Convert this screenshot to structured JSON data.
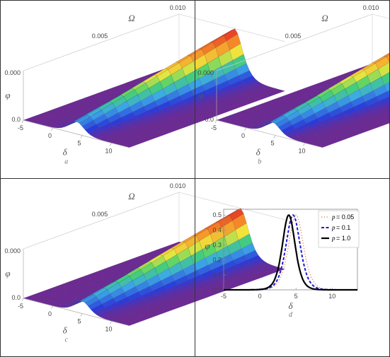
{
  "figure": {
    "border_color": "#333333"
  },
  "chart_data": [
    {
      "id": "a",
      "type": "surface",
      "panel_label": "a",
      "xlabel": "δ",
      "ylabel": "Ω",
      "zlabel": "φ",
      "x_ticks": [
        "-5",
        "0",
        "5",
        "10"
      ],
      "y_ticks": [
        "0.005",
        "0.010"
      ],
      "z_ticks": [
        "0.0",
        "0.000"
      ],
      "xlim": [
        -5,
        13
      ],
      "ylim": [
        0,
        0.01
      ],
      "peak_x": 4,
      "peak_height": 0.5,
      "colormap": "rainbow"
    },
    {
      "id": "b",
      "type": "surface",
      "panel_label": "b",
      "xlabel": "δ",
      "ylabel": "Ω",
      "zlabel": "φ",
      "x_ticks": [
        "-5",
        "0",
        "5",
        "10"
      ],
      "y_ticks": [
        "0.005",
        "0.010"
      ],
      "z_ticks": [
        "0.0",
        "0.000"
      ],
      "xlim": [
        -5,
        13
      ],
      "ylim": [
        0,
        0.01
      ],
      "peak_x": 4.5,
      "peak_height": 0.5,
      "colormap": "rainbow"
    },
    {
      "id": "c",
      "type": "surface",
      "panel_label": "c",
      "xlabel": "δ",
      "ylabel": "Ω",
      "zlabel": "φ",
      "x_ticks": [
        "-5",
        "0",
        "5",
        "10"
      ],
      "y_ticks": [
        "0.005",
        "0.010"
      ],
      "z_ticks": [
        "0.0",
        "0.000"
      ],
      "xlim": [
        -5,
        13
      ],
      "ylim": [
        0,
        0.01
      ],
      "peak_x": 5,
      "peak_height": 0.5,
      "colormap": "rainbow"
    },
    {
      "id": "d",
      "type": "line",
      "panel_label": "d",
      "xlabel": "δ",
      "ylabel": "φ",
      "xlim": [
        -5,
        13.5
      ],
      "ylim": [
        0,
        0.52
      ],
      "x_ticks": [
        "-5",
        "0",
        "5",
        "10"
      ],
      "y_ticks": [
        "0.0",
        "0.1",
        "0.2",
        "0.3",
        "0.4",
        "0.5"
      ],
      "legend_position": "top-right",
      "series": [
        {
          "prefix": "p",
          "name": " = 0.05",
          "color": "#e8743b",
          "dash": "dotted",
          "center": 5.0,
          "height": 0.5,
          "width": 2.2
        },
        {
          "prefix": "p",
          "name": " = 0.1",
          "color": "#1a1ad8",
          "dash": "dashed",
          "center": 4.6,
          "height": 0.5,
          "width": 2.1
        },
        {
          "prefix": "p",
          "name": " = 1.0",
          "color": "#000000",
          "dash": "solid",
          "center": 4.0,
          "height": 0.5,
          "width": 1.9
        }
      ]
    }
  ]
}
